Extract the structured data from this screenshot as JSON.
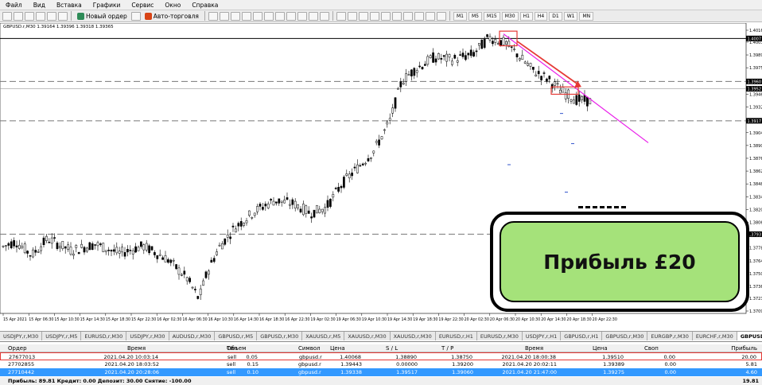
{
  "menu": [
    "Файл",
    "Вид",
    "Вставка",
    "Графики",
    "Сервис",
    "Окно",
    "Справка"
  ],
  "toolbar": {
    "new_order": "Новый ордер",
    "autotrade": "Авто-торговля",
    "timeframes": [
      "M1",
      "M5",
      "M15",
      "M30",
      "H1",
      "H4",
      "D1",
      "W1",
      "MN"
    ]
  },
  "chart": {
    "header": "GBPUSD.r,M30  1.39164 1.39396 1.39318 1.39365",
    "price_labels": [
      "1.4016",
      "1.4003",
      "1.3989",
      "1.3975",
      "1.3960",
      "1.3946",
      "1.3932",
      "1.3918",
      "1.3904",
      "1.3890",
      "1.3876",
      "1.3862",
      "1.3848",
      "1.3834",
      "1.3820",
      "1.3806",
      "1.3792",
      "1.3778",
      "1.3764",
      "1.3750",
      "1.3736",
      "1.3723",
      "1.3709"
    ],
    "time_labels": [
      "15 Apr 2021",
      "15 Apr 06:30",
      "15 Apr 10:30",
      "15 Apr 14:30",
      "15 Apr 18:30",
      "15 Apr 22:30",
      "16 Apr 02:30",
      "16 Apr 06:30",
      "16 Apr 10:30",
      "16 Apr 14:30",
      "16 Apr 18:30",
      "16 Apr 22:30",
      "19 Apr 02:30",
      "19 Apr 06:30",
      "19 Apr 10:30",
      "19 Apr 14:30",
      "19 Apr 18:30",
      "19 Apr 22:30",
      "20 Apr 02:30",
      "20 Apr 06:30",
      "20 Apr 10:30",
      "20 Apr 14:30",
      "20 Apr 18:30",
      "20 Apr 22:30"
    ],
    "hl_prices": [
      "1.4007",
      "1.3960",
      "1.3952",
      "1.3917",
      "1.3793"
    ],
    "colors": {
      "hline": "#000000",
      "dash": "#777777",
      "trend": "#e91ee9",
      "arrow": "#e53935",
      "box": "#e53935"
    }
  },
  "tabs": [
    "USDJPY,r,M30",
    "USDJPY,r,M5",
    "EURUSD,r,M30",
    "USDJPY,r,M30",
    "AUDUSD,r,M30",
    "GBPUSD,r,M5",
    "GBPUSD,r,M30",
    "XAUUSD,r,M5",
    "XAUUSD,r,M30",
    "XAUUSD,r,M30",
    "EURUSD,r,H1",
    "EURUSD,r,M30",
    "USDJPY,r,H1",
    "GBPUSD,r,H1",
    "GBPUSD,r,M30",
    "EURGBP,r,M30",
    "EURCHF,r,M30",
    "GBPUSD,r,M30"
  ],
  "terminal": {
    "headers": [
      "Ордер",
      "Время",
      "Тип",
      "Объем",
      "Символ",
      "Цена",
      "S / L",
      "T / P",
      "Время",
      "Цена",
      "Своп",
      "Прибыль"
    ],
    "rows": [
      [
        "27677013",
        "2021.04.20 10:03:14",
        "sell",
        "0.05",
        "gbpusd.r",
        "1.40068",
        "1.38890",
        "1.38750",
        "2021.04.20 18:00:38",
        "1.39510",
        "0.00",
        "20.00"
      ],
      [
        "27702855",
        "2021.04.20 18:03:52",
        "sell",
        "0.15",
        "gbpusd.r",
        "1.39443",
        "0.00000",
        "1.39200",
        "2021.04.20 20:02:11",
        "1.39389",
        "0.00",
        "5.81"
      ],
      [
        "27710442",
        "2021.04.20 20:28:06",
        "sell",
        "0.10",
        "gbpusd.r",
        "1.39338",
        "1.39517",
        "1.39060",
        "2021.04.20 21:47:00",
        "1.39275",
        "0.00",
        "4.60"
      ]
    ],
    "footer": "Прибыль: 89.81  Кредит: 0.00  Депозит: 30.00  Снятие: -100.00",
    "footer_total": "19.81"
  },
  "overlay": {
    "text": "Прибыль £20",
    "color": "#a5e27a"
  }
}
